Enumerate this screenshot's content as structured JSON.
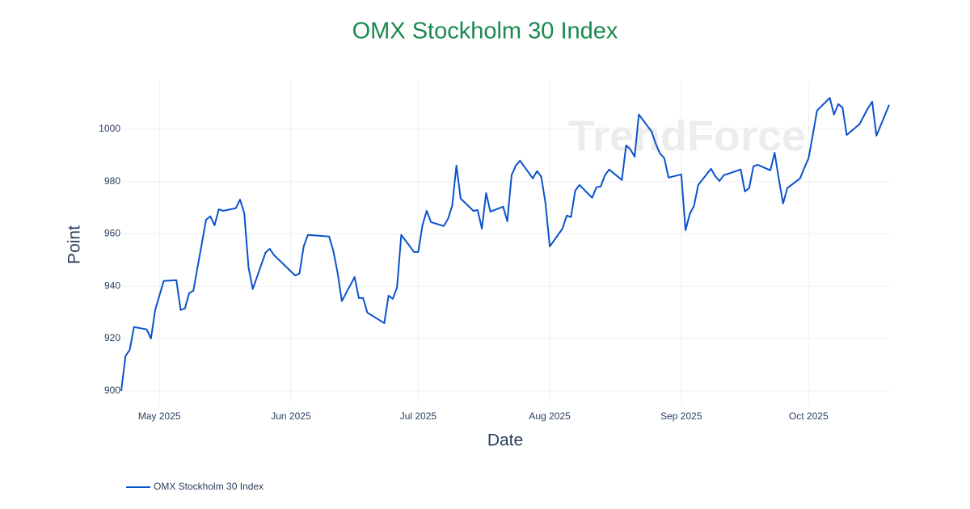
{
  "chart_data": {
    "type": "line",
    "title": "OMX Stockholm 30 Index",
    "x_label": "Date",
    "y_label": "Point",
    "watermark": "TrendForce",
    "grid": true,
    "legend": "bottom-left",
    "xlim": [
      "2025-04-22",
      "2025-10-20"
    ],
    "xticks": [
      {
        "value": "2025-05-01",
        "label": "May 2025"
      },
      {
        "value": "2025-06-01",
        "label": "Jun 2025"
      },
      {
        "value": "2025-07-01",
        "label": "Jul 2025"
      },
      {
        "value": "2025-08-01",
        "label": "Aug 2025"
      },
      {
        "value": "2025-09-01",
        "label": "Sep 2025"
      },
      {
        "value": "2025-10-01",
        "label": "Oct 2025"
      }
    ],
    "ylim": [
      895,
      1018.5
    ],
    "yticks": [
      900,
      920,
      940,
      960,
      980,
      1000
    ],
    "x": [
      "2025-04-22",
      "2025-04-23",
      "2025-04-24",
      "2025-04-25",
      "2025-04-28",
      "2025-04-29",
      "2025-04-30",
      "2025-05-02",
      "2025-05-05",
      "2025-05-06",
      "2025-05-07",
      "2025-05-08",
      "2025-05-09",
      "2025-05-12",
      "2025-05-13",
      "2025-05-14",
      "2025-05-15",
      "2025-05-16",
      "2025-05-19",
      "2025-05-20",
      "2025-05-21",
      "2025-05-22",
      "2025-05-23",
      "2025-05-26",
      "2025-05-27",
      "2025-05-28",
      "2025-06-02",
      "2025-06-03",
      "2025-06-04",
      "2025-06-05",
      "2025-06-10",
      "2025-06-11",
      "2025-06-12",
      "2025-06-13",
      "2025-06-16",
      "2025-06-17",
      "2025-06-18",
      "2025-06-19",
      "2025-06-23",
      "2025-06-24",
      "2025-06-25",
      "2025-06-26",
      "2025-06-27",
      "2025-06-30",
      "2025-07-01",
      "2025-07-02",
      "2025-07-03",
      "2025-07-04",
      "2025-07-07",
      "2025-07-08",
      "2025-07-09",
      "2025-07-10",
      "2025-07-11",
      "2025-07-14",
      "2025-07-15",
      "2025-07-16",
      "2025-07-17",
      "2025-07-18",
      "2025-07-21",
      "2025-07-22",
      "2025-07-23",
      "2025-07-24",
      "2025-07-25",
      "2025-07-28",
      "2025-07-29",
      "2025-07-30",
      "2025-07-31",
      "2025-08-01",
      "2025-08-04",
      "2025-08-05",
      "2025-08-06",
      "2025-08-07",
      "2025-08-08",
      "2025-08-11",
      "2025-08-12",
      "2025-08-13",
      "2025-08-14",
      "2025-08-15",
      "2025-08-18",
      "2025-08-19",
      "2025-08-20",
      "2025-08-21",
      "2025-08-22",
      "2025-08-25",
      "2025-08-26",
      "2025-08-27",
      "2025-08-28",
      "2025-08-29",
      "2025-09-01",
      "2025-09-02",
      "2025-09-03",
      "2025-09-04",
      "2025-09-05",
      "2025-09-08",
      "2025-09-09",
      "2025-09-10",
      "2025-09-11",
      "2025-09-15",
      "2025-09-16",
      "2025-09-17",
      "2025-09-18",
      "2025-09-19",
      "2025-09-22",
      "2025-09-23",
      "2025-09-24",
      "2025-09-25",
      "2025-09-26",
      "2025-09-29",
      "2025-09-30",
      "2025-10-01",
      "2025-10-02",
      "2025-10-03",
      "2025-10-06",
      "2025-10-07",
      "2025-10-08",
      "2025-10-09",
      "2025-10-10",
      "2025-10-13",
      "2025-10-15",
      "2025-10-16",
      "2025-10-17",
      "2025-10-20"
    ],
    "series": [
      {
        "name": "OMX Stockholm 30 Index",
        "color": "#0a52cc",
        "values": [
          900.0,
          913.3,
          915.7,
          924.4,
          923.5,
          920.0,
          930.9,
          942.0,
          942.3,
          930.9,
          931.5,
          937.3,
          938.3,
          965.4,
          966.7,
          963.3,
          969.4,
          968.8,
          969.8,
          973.1,
          967.9,
          947.2,
          938.9,
          952.8,
          954.3,
          951.9,
          944.1,
          944.8,
          955.2,
          959.6,
          959.0,
          953.4,
          945.1,
          934.3,
          943.5,
          935.5,
          935.5,
          929.9,
          925.9,
          936.4,
          935.2,
          939.5,
          959.6,
          953.1,
          953.1,
          963.3,
          968.8,
          964.5,
          963.0,
          965.7,
          970.7,
          986.1,
          973.5,
          968.8,
          969.1,
          962.0,
          975.6,
          968.5,
          970.4,
          964.8,
          982.4,
          986.1,
          988.0,
          981.2,
          984.0,
          981.8,
          971.6,
          955.2,
          962.0,
          967.0,
          966.4,
          976.5,
          978.7,
          973.8,
          977.8,
          978.1,
          982.4,
          984.6,
          980.6,
          993.8,
          992.3,
          989.5,
          1005.6,
          999.1,
          994.4,
          990.7,
          988.9,
          981.5,
          982.7,
          961.4,
          967.6,
          970.7,
          978.7,
          984.9,
          982.1,
          980.2,
          982.4,
          984.6,
          976.2,
          977.5,
          985.8,
          986.4,
          984.3,
          991.0,
          980.9,
          971.6,
          977.5,
          981.2,
          985.2,
          988.9,
          997.8,
          1007.1,
          1012.0,
          1005.6,
          1009.6,
          1008.3,
          997.8,
          1001.9,
          1008.0,
          1010.5,
          997.5,
          1009.3
        ]
      }
    ]
  }
}
